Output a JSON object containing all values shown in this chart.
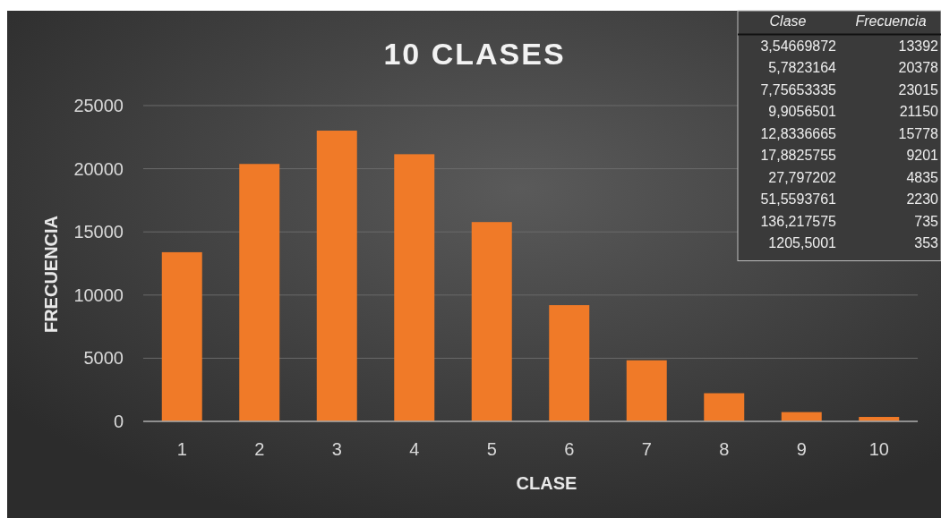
{
  "chart_data": {
    "type": "bar",
    "title": "10 CLASES",
    "xlabel": "CLASE",
    "ylabel": "FRECUENCIA",
    "categories": [
      "1",
      "2",
      "3",
      "4",
      "5",
      "6",
      "7",
      "8",
      "9",
      "10"
    ],
    "values": [
      13392,
      20378,
      23015,
      21150,
      15778,
      9201,
      4835,
      2230,
      735,
      353
    ],
    "color": "#f07a28",
    "ylim": [
      0,
      25000
    ],
    "yticks": [
      0,
      5000,
      10000,
      15000,
      20000,
      25000
    ],
    "grid": "y",
    "annotations": [
      "Clase",
      "Frecuencia",
      "3,54669872",
      "5,7823164",
      "7,75653335",
      "9,9056501",
      "12,8336665",
      "17,8825755",
      "27,797202",
      "51,5593761",
      "136,217575",
      "1205,5001",
      "13392",
      "20378",
      "23015",
      "21150",
      "15778",
      "9201",
      "4835",
      "2230",
      "735",
      "353"
    ]
  }
}
